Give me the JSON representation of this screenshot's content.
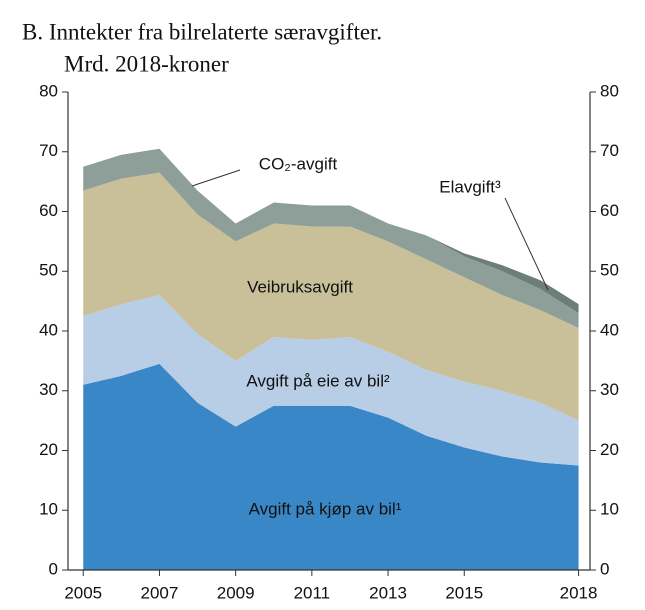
{
  "chart_data": {
    "type": "stacked_area",
    "title": "B. Inntekter fra bilrelaterte særavgifter.",
    "subtitle": "Mrd. 2018-kroner",
    "x": [
      2005,
      2006,
      2007,
      2008,
      2009,
      2010,
      2011,
      2012,
      2013,
      2014,
      2015,
      2016,
      2017,
      2018
    ],
    "series": [
      {
        "name": "Avgift på kjøp av bil¹",
        "color": "#3a87c8",
        "values": [
          31,
          32.5,
          34.5,
          28,
          24,
          27.5,
          27.5,
          27.5,
          25.5,
          22.5,
          20.5,
          19,
          18,
          17.5
        ]
      },
      {
        "name": "Avgift på eie av bil²",
        "color": "#b8cde6",
        "values": [
          11.5,
          12,
          11.5,
          11.5,
          11,
          11.5,
          11,
          11.5,
          11,
          11,
          11,
          11,
          10,
          7.5
        ]
      },
      {
        "name": "Veibruksavgift",
        "color": "#c9bf98",
        "values": [
          21,
          21,
          20.5,
          20,
          20,
          19,
          19,
          18.5,
          18.5,
          18.5,
          17.5,
          16,
          15.5,
          15.5
        ]
      },
      {
        "name": "CO₂-avgift",
        "color": "#8e9f99",
        "values": [
          4,
          4,
          4,
          4,
          3,
          3.5,
          3.5,
          3.5,
          3,
          4,
          3.5,
          4,
          3.5,
          2.5
        ]
      },
      {
        "name": "Elavgift³",
        "color": "#6d7d78",
        "values": [
          0,
          0,
          0,
          0,
          0,
          0,
          0,
          0,
          0,
          0,
          0.5,
          1,
          1.5,
          1.5
        ]
      }
    ],
    "xlim": [
      2004.6,
      2018.3
    ],
    "xticks": [
      2005,
      2007,
      2009,
      2011,
      2013,
      2015,
      2018
    ],
    "ylim": [
      0,
      80
    ],
    "yticks": [
      0,
      10,
      20,
      30,
      40,
      50,
      60,
      70,
      80
    ],
    "y2lim": [
      0,
      80
    ],
    "y2ticks": [
      0,
      10,
      20,
      30,
      40,
      50,
      60,
      70,
      80
    ]
  }
}
